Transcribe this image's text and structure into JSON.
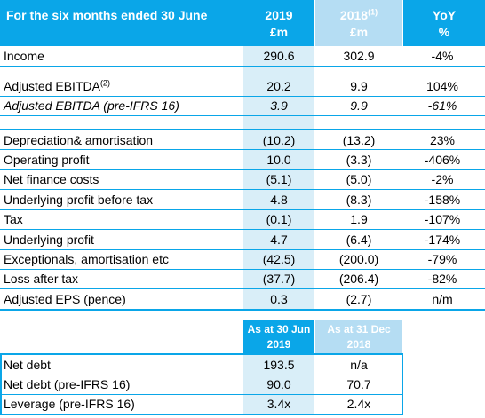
{
  "header": {
    "period": "For the six months ended 30 June",
    "col2019": "2019",
    "col2019_unit": "£m",
    "col2018": "2018",
    "col2018_sup": "(1)",
    "col2018_unit": "£m",
    "colyoy": "YoY",
    "colyoy_unit": "%"
  },
  "rows": [
    {
      "label": "Income",
      "v2019": "290.6",
      "v2018": "302.9",
      "yoy": "-4%"
    },
    {
      "label": "Adjusted EBITDA",
      "sup": "(2)",
      "v2019": "20.2",
      "v2018": "9.9",
      "yoy": "104%"
    },
    {
      "label": "Adjusted EBITDA (pre-IFRS 16)",
      "v2019": "3.9",
      "v2018": "9.9",
      "yoy": "-61%"
    },
    {
      "label": "Depreciation& amortisation",
      "v2019": "(10.2)",
      "v2018": "(13.2)",
      "yoy": "23%"
    },
    {
      "label": "Operating profit",
      "v2019": "10.0",
      "v2018": "(3.3)",
      "yoy": "-406%"
    },
    {
      "label": "Net finance costs",
      "v2019": "(5.1)",
      "v2018": "(5.0)",
      "yoy": "-2%"
    },
    {
      "label": "Underlying profit before tax",
      "v2019": "4.8",
      "v2018": "(8.3)",
      "yoy": "-158%"
    },
    {
      "label": "Tax",
      "v2019": "(0.1)",
      "v2018": "1.9",
      "yoy": "-107%"
    },
    {
      "label": "Underlying profit",
      "v2019": "4.7",
      "v2018": "(6.4)",
      "yoy": "-174%"
    },
    {
      "label": "Exceptionals, amortisation etc",
      "v2019": "(42.5)",
      "v2018": "(200.0)",
      "yoy": "-79%"
    },
    {
      "label": "Loss after tax",
      "v2019": "(37.7)",
      "v2018": "(206.4)",
      "yoy": "-82%"
    },
    {
      "label": "Adjusted EPS (pence)",
      "v2019": "0.3",
      "v2018": "(2.7)",
      "yoy": "n/m"
    }
  ],
  "balance_header": {
    "col2019_line1": "As at 30 Jun",
    "col2019_line2": "2019",
    "col2018_line1": "As at 31 Dec",
    "col2018_line2": "2018"
  },
  "balance_rows": [
    {
      "label": "Net debt",
      "v2019": "193.5",
      "v2018": "n/a"
    },
    {
      "label": "Net debt (pre-IFRS 16)",
      "v2019": "90.0",
      "v2018": "70.7"
    },
    {
      "label": "Leverage (pre-IFRS 16)",
      "v2019": "3.4x",
      "v2018": "2.4x"
    }
  ],
  "colors": {
    "accent": "#0aa6e8",
    "header_2018": "#b5ddf3",
    "shade_2019": "#d9eef8"
  }
}
